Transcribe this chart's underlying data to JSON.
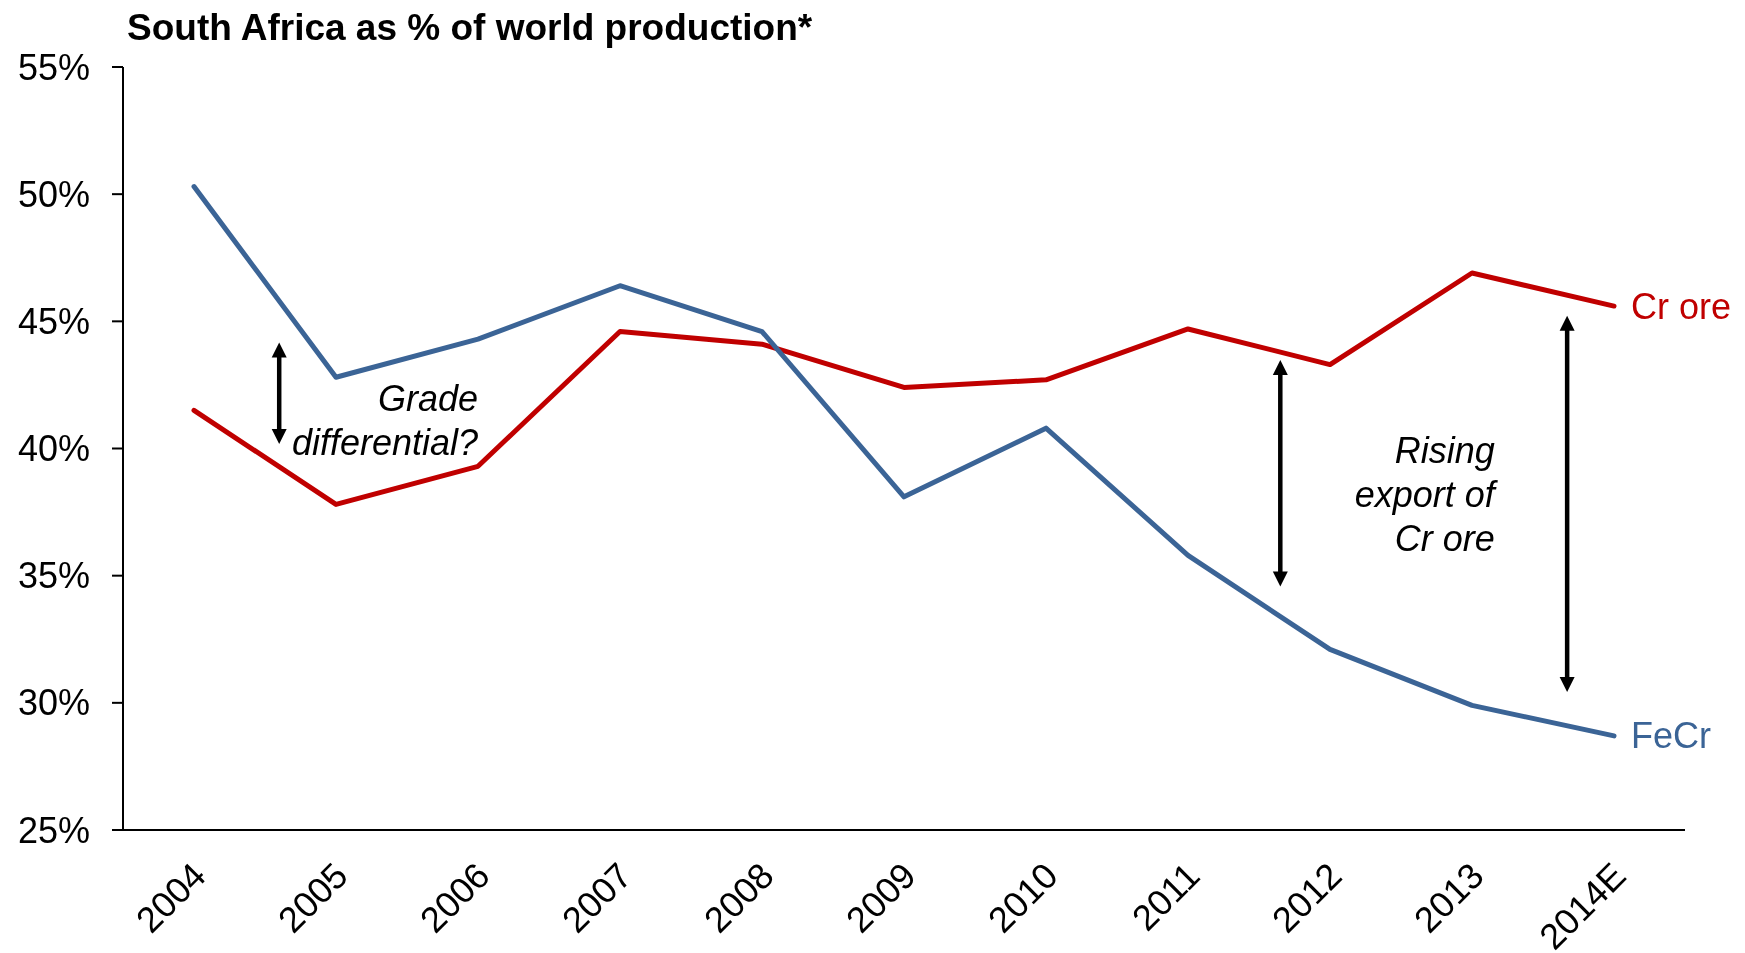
{
  "chart_data": {
    "type": "line",
    "title": "South Africa as % of world production*",
    "categories": [
      "2004",
      "2005",
      "2006",
      "2007",
      "2008",
      "2009",
      "2010",
      "2011",
      "2012",
      "2013",
      "2014E"
    ],
    "series": [
      {
        "name": "Cr ore",
        "color": "#c00000",
        "values": [
          41.5,
          37.8,
          39.3,
          44.6,
          44.1,
          42.4,
          42.7,
          44.7,
          43.3,
          46.9,
          45.6
        ]
      },
      {
        "name": "FeCr",
        "color": "#3b6496",
        "values": [
          50.3,
          42.8,
          44.3,
          46.4,
          44.6,
          38.1,
          40.8,
          35.8,
          32.1,
          29.9,
          28.7
        ]
      }
    ],
    "ylim": [
      25,
      55
    ],
    "yticks": [
      {
        "value": 25,
        "label": "25%"
      },
      {
        "value": 30,
        "label": "30%"
      },
      {
        "value": 35,
        "label": "35%"
      },
      {
        "value": 40,
        "label": "40%"
      },
      {
        "value": 45,
        "label": "45%"
      },
      {
        "value": 50,
        "label": "50%"
      },
      {
        "value": 55,
        "label": "55%"
      }
    ],
    "line_style": "solid",
    "annotations": [
      "Grade differential?",
      "Rising export of Cr ore"
    ]
  }
}
